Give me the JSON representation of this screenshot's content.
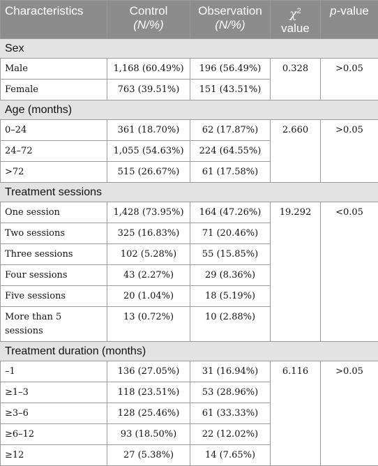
{
  "header": {
    "characteristics": "Characteristics",
    "control": "Control",
    "control_unit": "(N/%)",
    "observation": "Observation",
    "observation_unit": "(N/%)",
    "chi": "χ",
    "chi_sup": "2",
    "chi_value": "value",
    "p": "p",
    "p_suffix": "-value"
  },
  "sections": [
    {
      "title": "Sex",
      "chi2": "0.328",
      "p": ">0.05",
      "rows": [
        {
          "label": "Male",
          "control": "1,168 (60.49%)",
          "observation": "196 (56.49%)"
        },
        {
          "label": "Female",
          "control": "763 (39.51%)",
          "observation": "151 (43.51%)"
        }
      ]
    },
    {
      "title": "Age (months)",
      "chi2": "2.660",
      "p": ">0.05",
      "rows": [
        {
          "label": "0–24",
          "control": "361 (18.70%)",
          "observation": "62 (17.87%)"
        },
        {
          "label": "24–72",
          "control": "1,055 (54.63%)",
          "observation": "224 (64.55%)"
        },
        {
          "label": ">72",
          "control": "515 (26.67%)",
          "observation": "61 (17.58%)"
        }
      ]
    },
    {
      "title": "Treatment sessions",
      "chi2": "19.292",
      "p": "<0.05",
      "rows": [
        {
          "label": "One session",
          "control": "1,428 (73.95%)",
          "observation": "164 (47.26%)"
        },
        {
          "label": "Two sessions",
          "control": "325 (16.83%)",
          "observation": "71 (20.46%)"
        },
        {
          "label": "Three sessions",
          "control": "102 (5.28%)",
          "observation": "55 (15.85%)"
        },
        {
          "label": "Four sessions",
          "control": "43 (2.27%)",
          "observation": "29 (8.36%)"
        },
        {
          "label": "Five sessions",
          "control": "20 (1.04%)",
          "observation": "18 (5.19%)"
        },
        {
          "label": "More than 5 sessions",
          "control": "13 (0.72%)",
          "observation": "10 (2.88%)"
        }
      ]
    },
    {
      "title": "Treatment duration (months)",
      "chi2": "6.116",
      "p": ">0.05",
      "rows": [
        {
          "label": "–1",
          "control": "136 (27.05%)",
          "observation": "31 (16.94%)"
        },
        {
          "label": "≥1–3",
          "control": "118 (23.51%)",
          "observation": "53 (28.96%)"
        },
        {
          "label": "≥3–6",
          "control": "128 (25.46%)",
          "observation": "61 (33.33%)"
        },
        {
          "label": "≥6–12",
          "control": "93 (18.50%)",
          "observation": "22 (12.02%)"
        },
        {
          "label": "≥12",
          "control": "27 (5.38%)",
          "observation": "14 (7.65%)"
        }
      ]
    }
  ]
}
